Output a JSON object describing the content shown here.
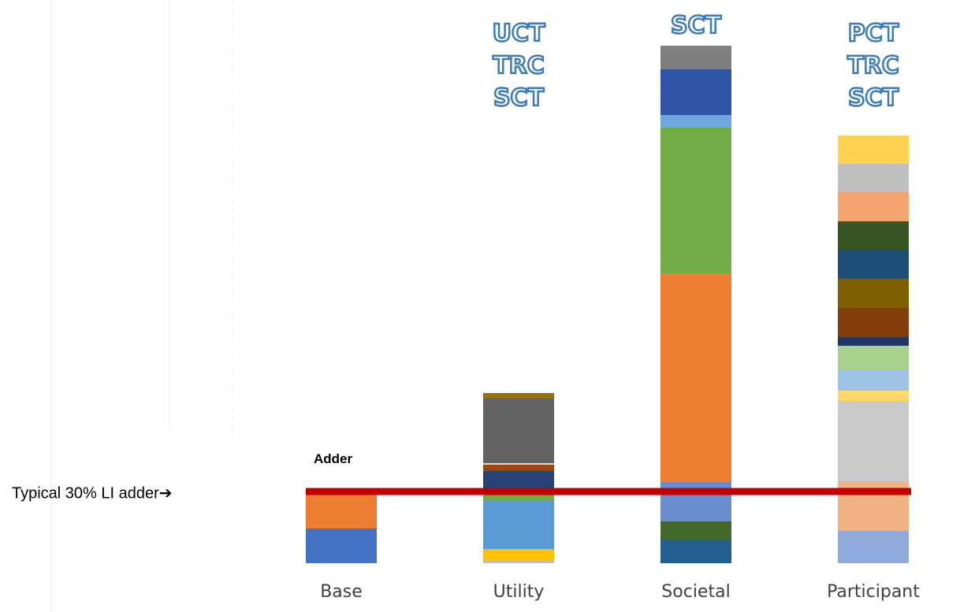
{
  "chart_data": {
    "type": "stacked_bar",
    "categories": [
      "Base",
      "Utility",
      "Societal",
      "Participant"
    ],
    "ylim": [
      0,
      71.5
    ],
    "stacks": [
      [
        {
          "color": "#4472c4",
          "value": 4.4
        },
        {
          "color": "#ed7d31",
          "value": 4.4
        }
      ],
      [
        {
          "color": "#bfbfbf",
          "value": 0.3
        },
        {
          "color": "#ffc000",
          "value": 1.5
        },
        {
          "color": "#5b9bd5",
          "value": 6.2
        },
        {
          "color": "#70ad47",
          "value": 0.8
        },
        {
          "color": "#264478",
          "value": 2.9
        },
        {
          "color": "#9e480e",
          "value": 0.8
        },
        {
          "color": "#d9d9d9",
          "value": 0.2
        },
        {
          "color": "#636363",
          "value": 8.2
        },
        {
          "color": "#997300",
          "value": 0.7
        }
      ],
      [
        {
          "color": "#255e91",
          "value": 2.9
        },
        {
          "color": "#43682b",
          "value": 2.4
        },
        {
          "color": "#698ed0",
          "value": 5.0
        },
        {
          "color": "#ed7d31",
          "value": 26.5
        },
        {
          "color": "#70ad47",
          "value": 18.5
        },
        {
          "color": "#6fa8dc",
          "value": 1.6
        },
        {
          "color": "#2f55a4",
          "value": 5.8
        },
        {
          "color": "#7f7f7f",
          "value": 3.0
        }
      ],
      [
        {
          "color": "#8faadc",
          "value": 4.1
        },
        {
          "color": "#f4b183",
          "value": 6.3
        },
        {
          "color": "#c9c9c9",
          "value": 10.2
        },
        {
          "color": "#ffd966",
          "value": 1.3
        },
        {
          "color": "#9dc3e6",
          "value": 2.7
        },
        {
          "color": "#a9d18e",
          "value": 3.0
        },
        {
          "color": "#1f3864",
          "value": 1.1
        },
        {
          "color": "#843c0c",
          "value": 3.7
        },
        {
          "color": "#7f6000",
          "value": 3.7
        },
        {
          "color": "#1f4e79",
          "value": 3.6
        },
        {
          "color": "#375623",
          "value": 3.7
        },
        {
          "color": "#f4a46e",
          "value": 3.7
        },
        {
          "color": "#bfbfbf",
          "value": 3.6
        },
        {
          "color": "#ffd34f",
          "value": 3.6
        }
      ]
    ],
    "bar_annotations": [
      [],
      [
        "UCT",
        "TRC",
        "SCT"
      ],
      [
        "SCT"
      ],
      [
        "PCT",
        "TRC",
        "SCT"
      ]
    ],
    "adder_line": {
      "value": 9.1,
      "color": "#c00000",
      "label": "Adder",
      "note": "Typical 30% LI adder➔"
    }
  }
}
